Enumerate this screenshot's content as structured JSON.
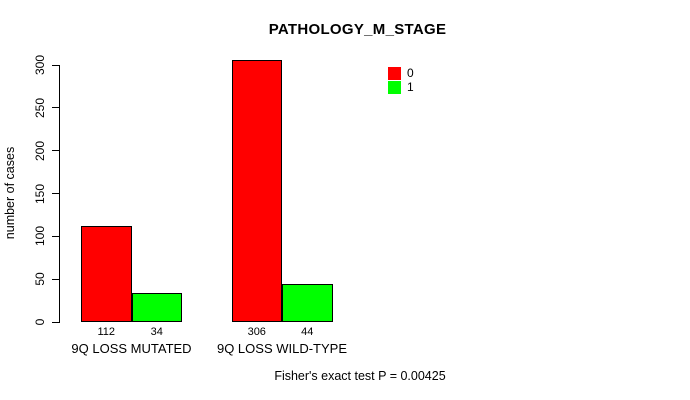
{
  "chart_data": {
    "type": "bar",
    "title": "PATHOLOGY_M_STAGE",
    "ylabel": "number of cases",
    "xlabel": "",
    "ylim": [
      0,
      300
    ],
    "yticks": [
      0,
      50,
      100,
      150,
      200,
      250,
      300
    ],
    "categories": [
      "9Q LOSS MUTATED",
      "9Q LOSS WILD-TYPE"
    ],
    "series": [
      {
        "name": "0",
        "color": "#FF0000",
        "values": [
          112,
          306
        ]
      },
      {
        "name": "1",
        "color": "#00FF00",
        "values": [
          34,
          44
        ]
      }
    ],
    "value_labels": [
      [
        112,
        34
      ],
      [
        306,
        44
      ]
    ],
    "legend_position": "top-right",
    "grid": false,
    "annotation": "Fisher's exact test P = 0.00425"
  }
}
